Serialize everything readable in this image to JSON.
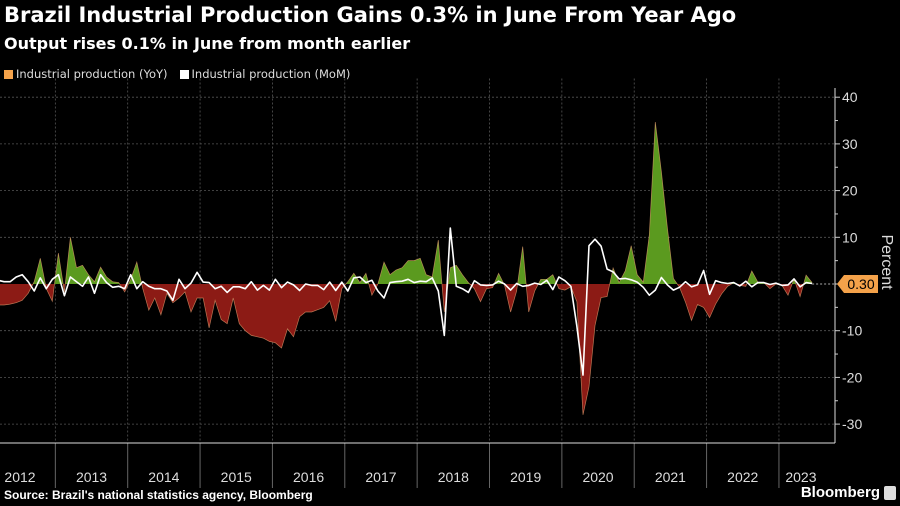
{
  "header": {
    "title": "Brazil Industrial Production Gains 0.3% in June From Year Ago",
    "subtitle": "Output rises 0.1% in June from month earlier"
  },
  "footer": {
    "source": "Source: Brazil's national statistics agency, Bloomberg",
    "logo": "Bloomberg"
  },
  "colors": {
    "yoy_legend": "#f4a24a",
    "mom_line": "#ffffff",
    "positive_fill": "#5b9a1f",
    "negative_fill": "#8c1b15",
    "area_outline": "#e8a070",
    "last_value_badge": "#f4a24a",
    "grid": "#555555",
    "background": "#000000"
  },
  "chart_data": {
    "type": "area",
    "title": "Brazil Industrial Production Gains 0.3% in June From Year Ago",
    "subtitle": "Output rises 0.1% in June from month earlier",
    "ylabel": "Percent",
    "xlabel": "",
    "ylim": [
      -33,
      44
    ],
    "yticks": [
      40,
      30,
      20,
      10,
      -10,
      -20,
      -30
    ],
    "x_start": "2012-01",
    "x_end": "2023-06",
    "frequency": "monthly",
    "x_tick_labels": [
      "2012",
      "2013",
      "2014",
      "2015",
      "2016",
      "2017",
      "2018",
      "2019",
      "2020",
      "2021",
      "2022",
      "2023"
    ],
    "grid": true,
    "legend_placement": "top-left",
    "last_value_label": "0.30",
    "series": [
      {
        "name": "Industrial production (YoY)",
        "style": "area, green above zero, red below zero",
        "values": [
          -3,
          -4,
          -4.5,
          -4.5,
          -4.3,
          -4,
          -3.5,
          -2,
          0.5,
          5.5,
          -1,
          -3.7,
          6.6,
          -1.7,
          10,
          3.5,
          4,
          2,
          0.5,
          3.6,
          1.5,
          0.5,
          0.3,
          -1.7,
          1,
          4.7,
          -1,
          -5.6,
          -3,
          -6.6,
          -2,
          -4,
          -3,
          -1.7,
          -6,
          -3,
          -3,
          -9.4,
          -3.5,
          -7.6,
          -8.5,
          -3,
          -8.5,
          -10,
          -11,
          -11.3,
          -11.6,
          -12.3,
          -12.6,
          -13.7,
          -9.6,
          -11.3,
          -7,
          -6,
          -6,
          -5.5,
          -5,
          -3.6,
          -8,
          -1,
          0.5,
          2.3,
          0.3,
          2.3,
          -2.4,
          0,
          4.7,
          2,
          3,
          3.5,
          5,
          5,
          5.5,
          2,
          1.5,
          9.4,
          -6,
          3.5,
          4,
          2,
          0.3,
          -1,
          -3.8,
          -1,
          -0.8,
          2.3,
          -0.3,
          -6,
          -1.5,
          8,
          -6,
          -1.5,
          1,
          1,
          2,
          -1,
          -1.3,
          -0.6,
          -3.8,
          -28,
          -22,
          -8.9,
          -2.9,
          -2.7,
          3.4,
          0.3,
          2.8,
          8.2,
          2,
          0.4,
          10.5,
          34.7,
          24,
          12,
          1.2,
          -0.7,
          -3.9,
          -7.8,
          -4.4,
          -5,
          -7.2,
          -4.3,
          -2.1,
          -0.5,
          0.3,
          -0.3,
          -0.5,
          2.8,
          0.4,
          0.3,
          -1,
          0,
          -0.3,
          -2.4,
          1.1,
          -2.7,
          1.9,
          0.3
        ]
      },
      {
        "name": "Industrial production (MoM)",
        "style": "line",
        "values": [
          -0.5,
          0.3,
          0.8,
          0.5,
          0.5,
          1.5,
          2,
          0.5,
          -1.5,
          1.3,
          -1,
          1,
          2,
          -2.5,
          1.5,
          0.5,
          -0.5,
          1.5,
          -2,
          2,
          0.3,
          -0.7,
          -0.5,
          -1,
          2,
          -1,
          0.5,
          -0.5,
          -1,
          -1,
          -1.5,
          -3.5,
          1,
          -1,
          0.2,
          2.5,
          0.4,
          0.3,
          -1,
          -0.5,
          -1.8,
          -0.6,
          -0.6,
          -1,
          0.5,
          -1.3,
          -0.3,
          -1.3,
          1,
          -0.8,
          0.4,
          -0.2,
          -1.4,
          0,
          -0.3,
          -0.3,
          -1.2,
          0.4,
          -1.4,
          0.4,
          -1.5,
          1.3,
          1.5,
          0.3,
          0.8,
          -1.5,
          -3,
          0.3,
          0.5,
          0.6,
          1,
          0.3,
          0.6,
          0.5,
          1.3,
          -1.5,
          -11,
          12,
          -0.5,
          -1,
          -1.8,
          0.7,
          -0.2,
          -0.3,
          -0.2,
          0.6,
          0,
          -1.3,
          0.1,
          -0.5,
          -0.3,
          0.2,
          -0.1,
          0.8,
          -1.2,
          1.5,
          0.7,
          -0.5,
          -9.1,
          -19.5,
          8.2,
          9.6,
          8.1,
          3.2,
          2.6,
          1.1,
          1.2,
          0.9,
          0.4,
          -0.7,
          -2.4,
          -1.3,
          1.4,
          -0.2,
          -1.3,
          -0.7,
          0.5,
          -0.6,
          -0.2,
          2.9,
          -2.2,
          0.7,
          0.3,
          0.1,
          0.3,
          -0.4,
          0.6,
          -0.6,
          0.3,
          0.3,
          -0.1,
          0.2,
          -0.3,
          -0.2,
          1.1,
          -0.6,
          0.3,
          0.1
        ]
      }
    ]
  }
}
